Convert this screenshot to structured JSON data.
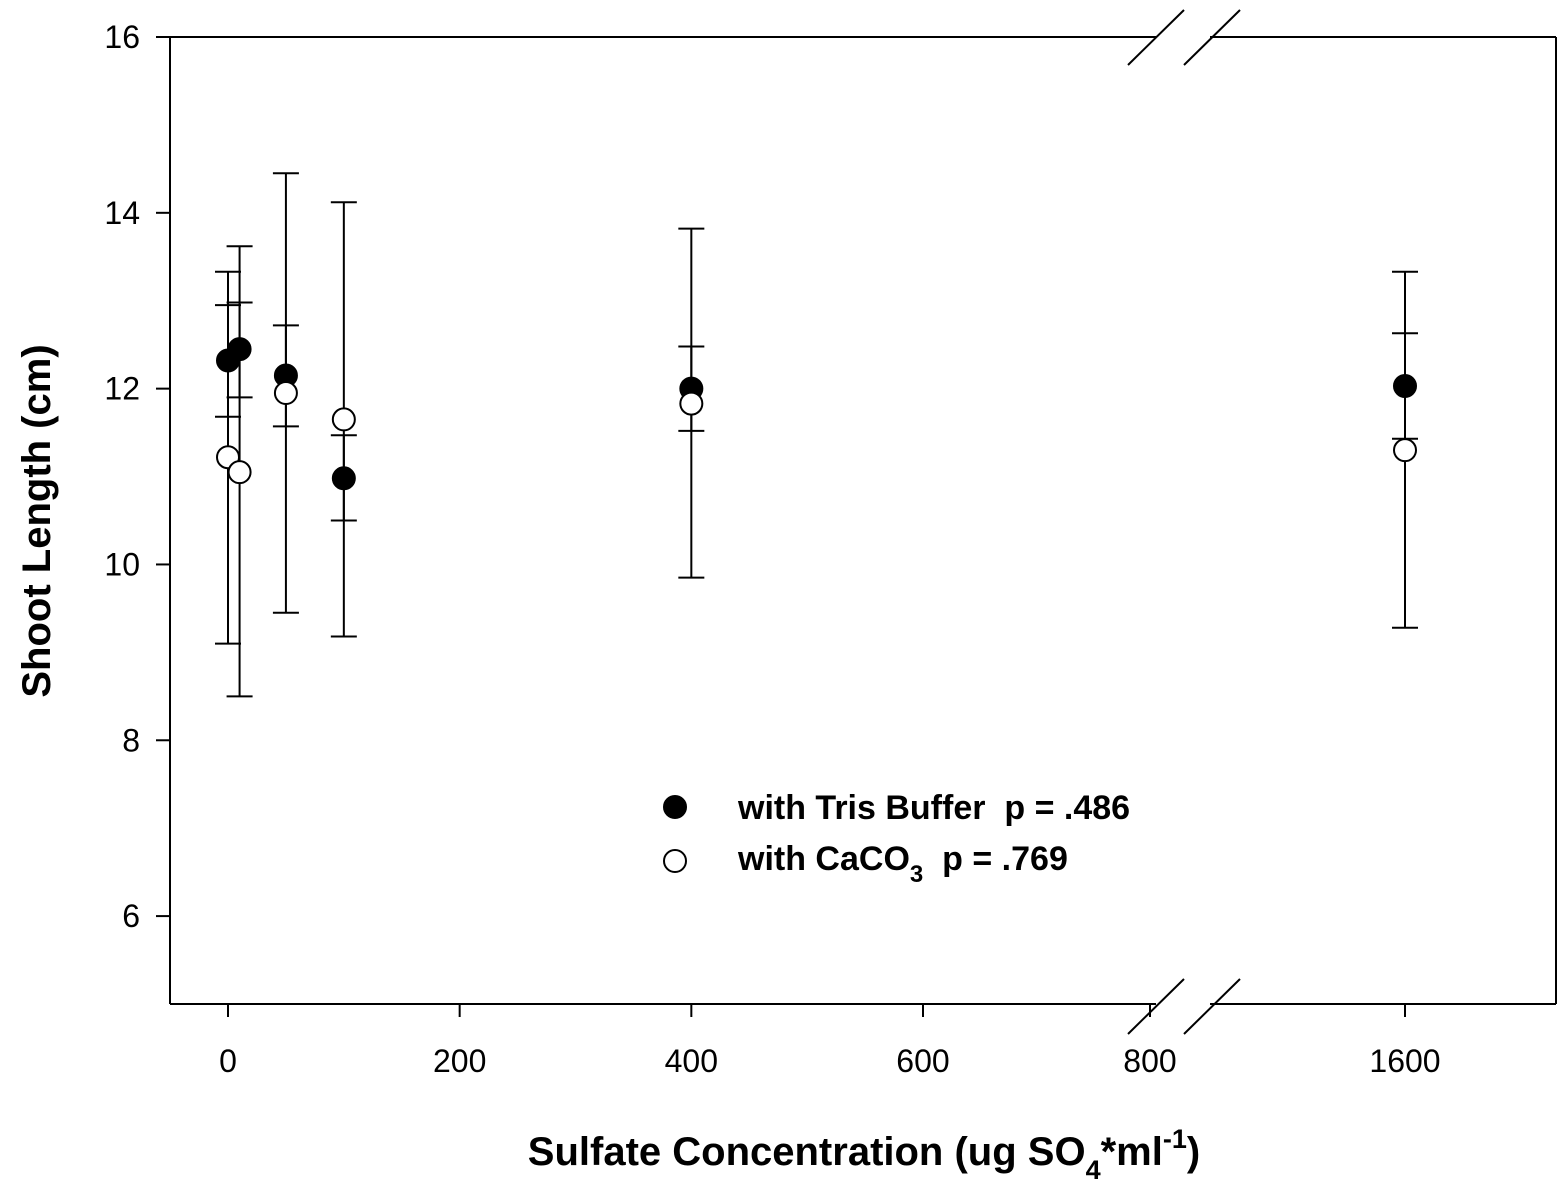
{
  "chart_data": {
    "type": "scatter",
    "xlabel": {
      "prefix": "Sulfate Concentration (ug SO",
      "sub": "4",
      "middle": "*ml",
      "sup": "-1",
      "suffix": ")"
    },
    "ylabel": "Shoot Length (cm)",
    "ylim": [
      5,
      16
    ],
    "x_axis": {
      "broken": true,
      "segment1_range": [
        -50,
        800
      ],
      "segment2_range": [
        1600,
        1600
      ],
      "tick_values": [
        0,
        200,
        400,
        600,
        800,
        1600
      ],
      "tick_labels": [
        "0",
        "200",
        "400",
        "600",
        "800",
        "1600"
      ]
    },
    "y_axis": {
      "tick_values": [
        6,
        8,
        10,
        12,
        14,
        16
      ],
      "tick_labels": [
        "6",
        "8",
        "10",
        "12",
        "14",
        "16"
      ]
    },
    "grid": false,
    "legend_position": "bottom-center",
    "series": [
      {
        "name": "with Tris Buffer  p = .486",
        "marker": "filled-circle",
        "color": "#000000",
        "points": [
          {
            "x": 0,
            "y": 12.32,
            "y_low": 11.68,
            "y_high": 12.95
          },
          {
            "x": 10,
            "y": 12.45,
            "y_low": 11.9,
            "y_high": 12.98
          },
          {
            "x": 50,
            "y": 12.15,
            "y_low": 11.57,
            "y_high": 12.72
          },
          {
            "x": 100,
            "y": 10.98,
            "y_low": 10.5,
            "y_high": 11.47
          },
          {
            "x": 400,
            "y": 12.0,
            "y_low": 11.52,
            "y_high": 12.48
          },
          {
            "x": 1600,
            "y": 12.03,
            "y_low": 11.43,
            "y_high": 12.63
          }
        ]
      },
      {
        "name_prefix": "with CaCO",
        "name_sub": "3",
        "name_suffix": "  p = .769",
        "marker": "open-circle",
        "color": "#000000",
        "points": [
          {
            "x": 0,
            "y": 11.22,
            "y_low": 9.1,
            "y_high": 13.33
          },
          {
            "x": 10,
            "y": 11.05,
            "y_low": 8.5,
            "y_high": 13.62
          },
          {
            "x": 50,
            "y": 11.95,
            "y_low": 9.45,
            "y_high": 14.45
          },
          {
            "x": 100,
            "y": 11.65,
            "y_low": 9.18,
            "y_high": 14.12
          },
          {
            "x": 400,
            "y": 11.83,
            "y_low": 9.85,
            "y_high": 13.82
          },
          {
            "x": 1600,
            "y": 11.3,
            "y_low": 9.28,
            "y_high": 13.33
          }
        ]
      }
    ]
  }
}
